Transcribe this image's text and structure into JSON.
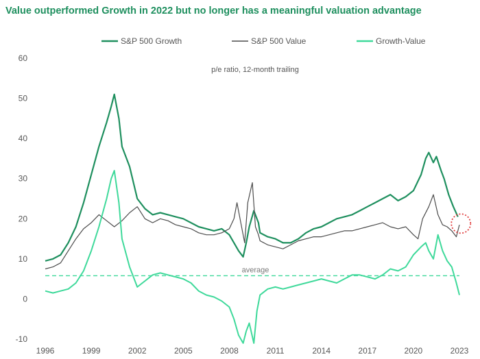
{
  "title": "Value outperformed Growth in 2022 but no longer has a meaningful valuation advantage",
  "chart_data": {
    "type": "line",
    "subtitle": "p/e ratio, 12-month trailing",
    "xlabel": "",
    "ylabel": "",
    "xlim": [
      1996,
      2023
    ],
    "ylim": [
      -10,
      60
    ],
    "x_ticks": [
      "1996",
      "1999",
      "2002",
      "2005",
      "2008",
      "2011",
      "2014",
      "2017",
      "2020",
      "2023"
    ],
    "y_ticks": [
      "-10",
      "0",
      "10",
      "20",
      "30",
      "40",
      "50",
      "60"
    ],
    "grid": false,
    "legend_position": "top",
    "average_label": "average",
    "average_value": 5.8,
    "colors": {
      "growth": "#1e8f5e",
      "value": "#4a4a4a",
      "diff": "#3ed99a",
      "average": "#3ed99a",
      "highlight": "#e03c3c"
    },
    "series": [
      {
        "name": "S&P 500 Growth",
        "x": [
          1996.0,
          1996.5,
          1997.0,
          1997.5,
          1998.0,
          1998.5,
          1999.0,
          1999.5,
          2000.0,
          2000.3,
          2000.5,
          2000.8,
          2001.0,
          2001.5,
          2002.0,
          2002.5,
          2003.0,
          2003.5,
          2004.0,
          2004.5,
          2005.0,
          2005.5,
          2006.0,
          2006.5,
          2007.0,
          2007.5,
          2008.0,
          2008.3,
          2008.6,
          2008.9,
          2009.1,
          2009.3,
          2009.6,
          2009.9,
          2010.0,
          2010.5,
          2011.0,
          2011.5,
          2012.0,
          2012.5,
          2013.0,
          2013.5,
          2014.0,
          2014.5,
          2015.0,
          2015.5,
          2016.0,
          2016.5,
          2017.0,
          2017.5,
          2018.0,
          2018.5,
          2019.0,
          2019.5,
          2020.0,
          2020.5,
          2020.8,
          2021.0,
          2021.3,
          2021.5,
          2021.8,
          2022.0,
          2022.3,
          2022.6,
          2022.9
        ],
        "values": [
          9.5,
          10.0,
          11.0,
          14.0,
          18.0,
          24.0,
          31.0,
          38.0,
          44.0,
          48.0,
          51.0,
          45.0,
          38.0,
          33.0,
          25.0,
          22.5,
          21.0,
          21.5,
          21.0,
          20.5,
          20.0,
          19.0,
          18.0,
          17.5,
          17.0,
          17.5,
          16.0,
          14.0,
          12.0,
          10.5,
          14.0,
          18.0,
          22.0,
          19.0,
          16.5,
          15.5,
          15.0,
          14.0,
          14.0,
          15.0,
          16.5,
          17.5,
          18.0,
          19.0,
          20.0,
          20.5,
          21.0,
          22.0,
          23.0,
          24.0,
          25.0,
          26.0,
          24.5,
          25.5,
          27.0,
          31.0,
          35.0,
          36.5,
          34.0,
          35.5,
          32.0,
          30.0,
          26.0,
          23.0,
          20.5
        ]
      },
      {
        "name": "S&P 500 Value",
        "x": [
          1996.0,
          1996.5,
          1997.0,
          1997.5,
          1998.0,
          1998.5,
          1999.0,
          1999.5,
          2000.0,
          2000.5,
          2001.0,
          2001.5,
          2002.0,
          2002.5,
          2003.0,
          2003.5,
          2004.0,
          2004.5,
          2005.0,
          2005.5,
          2006.0,
          2006.5,
          2007.0,
          2007.5,
          2008.0,
          2008.3,
          2008.5,
          2008.8,
          2009.0,
          2009.2,
          2009.5,
          2009.7,
          2009.9,
          2010.0,
          2010.5,
          2011.0,
          2011.5,
          2012.0,
          2012.5,
          2013.0,
          2013.5,
          2014.0,
          2014.5,
          2015.0,
          2015.5,
          2016.0,
          2016.5,
          2017.0,
          2017.5,
          2018.0,
          2018.5,
          2019.0,
          2019.5,
          2020.0,
          2020.3,
          2020.6,
          2021.0,
          2021.3,
          2021.6,
          2021.9,
          2022.2,
          2022.5,
          2022.8,
          2023.0
        ],
        "values": [
          7.5,
          8.0,
          9.0,
          12.0,
          15.0,
          17.5,
          19.0,
          21.0,
          19.5,
          18.0,
          19.5,
          21.5,
          23.0,
          20.0,
          19.0,
          20.0,
          19.5,
          18.5,
          18.0,
          17.5,
          16.5,
          16.0,
          16.0,
          16.5,
          17.5,
          20.0,
          24.0,
          18.0,
          14.0,
          24.0,
          29.0,
          18.0,
          16.0,
          14.5,
          13.5,
          13.0,
          12.5,
          13.5,
          14.5,
          15.0,
          15.5,
          15.5,
          16.0,
          16.5,
          17.0,
          17.0,
          17.5,
          18.0,
          18.5,
          19.0,
          18.0,
          17.5,
          18.0,
          16.0,
          15.0,
          20.0,
          23.0,
          26.0,
          21.0,
          18.5,
          18.0,
          17.0,
          15.5,
          18.5
        ]
      },
      {
        "name": "Growth-Value",
        "x": [
          1996.0,
          1996.5,
          1997.0,
          1997.5,
          1998.0,
          1998.5,
          1999.0,
          1999.5,
          2000.0,
          2000.3,
          2000.5,
          2000.8,
          2001.0,
          2001.5,
          2002.0,
          2002.5,
          2003.0,
          2003.5,
          2004.0,
          2004.5,
          2005.0,
          2005.5,
          2006.0,
          2006.5,
          2007.0,
          2007.5,
          2008.0,
          2008.3,
          2008.6,
          2008.9,
          2009.1,
          2009.3,
          2009.6,
          2009.8,
          2010.0,
          2010.5,
          2011.0,
          2011.5,
          2012.0,
          2012.5,
          2013.0,
          2013.5,
          2014.0,
          2014.5,
          2015.0,
          2015.5,
          2016.0,
          2016.5,
          2017.0,
          2017.5,
          2018.0,
          2018.5,
          2019.0,
          2019.5,
          2020.0,
          2020.5,
          2020.8,
          2021.0,
          2021.3,
          2021.6,
          2021.9,
          2022.2,
          2022.5,
          2022.8,
          2023.0
        ],
        "values": [
          2.0,
          1.5,
          2.0,
          2.5,
          4.0,
          7.0,
          12.0,
          18.0,
          25.0,
          30.0,
          32.0,
          24.0,
          15.0,
          8.0,
          3.0,
          4.5,
          6.0,
          6.5,
          6.0,
          5.5,
          5.0,
          4.0,
          2.0,
          1.0,
          0.5,
          -0.5,
          -2.0,
          -5.0,
          -9.0,
          -11.0,
          -8.0,
          -6.0,
          -11.0,
          -3.0,
          1.0,
          2.5,
          3.0,
          2.5,
          3.0,
          3.5,
          4.0,
          4.5,
          5.0,
          4.5,
          4.0,
          5.0,
          6.0,
          6.0,
          5.5,
          5.0,
          6.0,
          7.5,
          7.0,
          8.0,
          11.0,
          13.0,
          14.0,
          12.0,
          10.0,
          16.0,
          12.0,
          9.5,
          8.0,
          4.0,
          1.0
        ]
      }
    ]
  }
}
